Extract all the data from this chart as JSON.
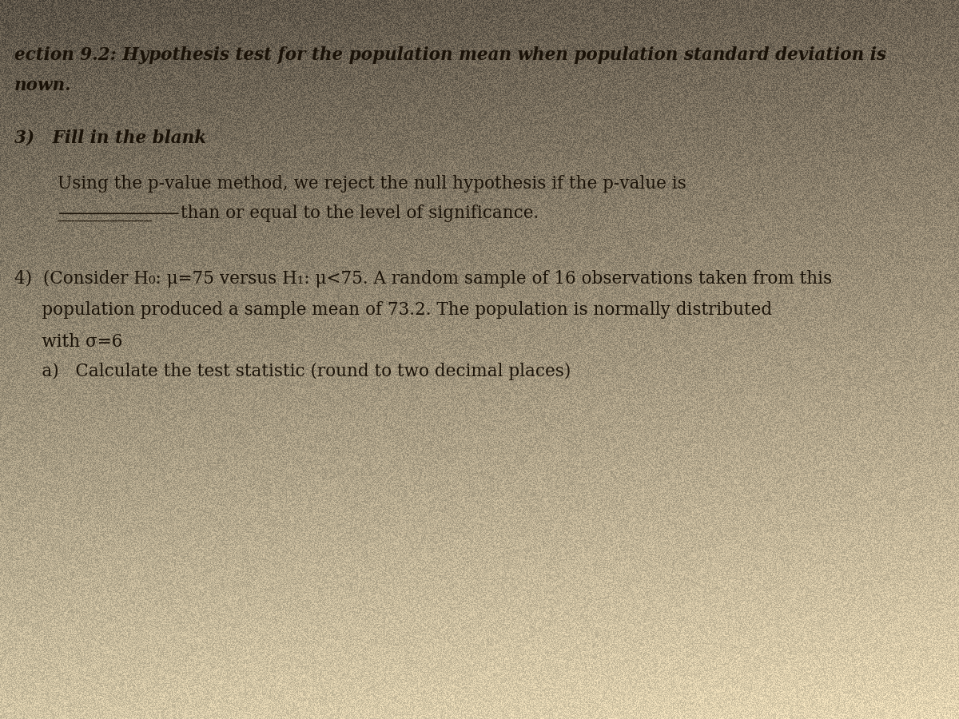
{
  "background_color_top": "#888078",
  "background_color_mid": "#c8bfa8",
  "background_color_light": "#d4cbb4",
  "title_line1": "ection 9.2: Hypothesis test for the population mean when population standard deviation is",
  "title_line2": "nown.",
  "section3_header": "3)   Fill in the blank",
  "section3_body_line1": "Using the p-value method, we reject the null hypothesis if the p-value is",
  "section3_body_line2_part1": "___________",
  "section3_body_line2_part2": "than or equal to the level of significance.",
  "section4_header_4": "4)  (Consider H₀: μ=75 versus H₁: μ<75. A random sample of 16 observations taken from this",
  "section4_line2": "     population produced a sample mean of 73.2. The population is normally distributed",
  "section4_line3": "     with σ=6",
  "section4_line4": "     a)   Calculate the test statistic (round to two decimal places)",
  "text_color": "#1a1208",
  "font_size_title": 15.5,
  "font_size_body": 15.5,
  "font_size_header": 15.5,
  "noise_seed": 42,
  "noise_intensity": 30
}
